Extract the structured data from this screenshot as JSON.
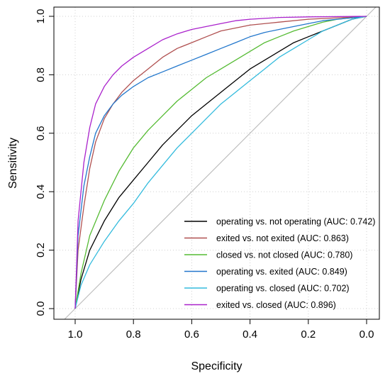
{
  "chart_data": {
    "type": "line",
    "title": "",
    "xlabel": "Specificity",
    "ylabel": "Sensitivity",
    "xlim": [
      1.0,
      0.0
    ],
    "ylim": [
      0.0,
      1.0
    ],
    "x_reversed": true,
    "x_ticks": [
      "1.0",
      "0.8",
      "0.6",
      "0.4",
      "0.2",
      "0.0"
    ],
    "y_ticks": [
      "0.0",
      "0.2",
      "0.4",
      "0.6",
      "0.8",
      "1.0"
    ],
    "grid": true,
    "legend_position": "bottom-right",
    "reference_line": {
      "from": [
        1.0,
        0.0
      ],
      "to": [
        0.0,
        1.0
      ],
      "color": "#bebebe"
    },
    "series": [
      {
        "name": "operating vs. not operating (AUC: 0.742)",
        "color": "#000000",
        "x": [
          1.0,
          0.98,
          0.95,
          0.9,
          0.85,
          0.8,
          0.75,
          0.7,
          0.65,
          0.6,
          0.55,
          0.5,
          0.45,
          0.4,
          0.35,
          0.3,
          0.25,
          0.2,
          0.15,
          0.1,
          0.05,
          0.0
        ],
        "y": [
          0.0,
          0.1,
          0.2,
          0.3,
          0.38,
          0.44,
          0.5,
          0.56,
          0.61,
          0.66,
          0.7,
          0.74,
          0.78,
          0.82,
          0.85,
          0.88,
          0.91,
          0.93,
          0.95,
          0.97,
          0.99,
          1.0
        ]
      },
      {
        "name": "exited vs. not exited (AUC: 0.863)",
        "color": "#b05050",
        "x": [
          1.0,
          0.99,
          0.97,
          0.95,
          0.93,
          0.9,
          0.87,
          0.84,
          0.8,
          0.75,
          0.7,
          0.65,
          0.6,
          0.55,
          0.5,
          0.45,
          0.4,
          0.3,
          0.2,
          0.1,
          0.0
        ],
        "y": [
          0.0,
          0.2,
          0.35,
          0.48,
          0.57,
          0.65,
          0.7,
          0.74,
          0.78,
          0.82,
          0.86,
          0.89,
          0.91,
          0.93,
          0.95,
          0.96,
          0.97,
          0.98,
          0.99,
          0.995,
          1.0
        ]
      },
      {
        "name": "closed vs. not closed (AUC: 0.780)",
        "color": "#55bb33",
        "x": [
          1.0,
          0.98,
          0.95,
          0.9,
          0.85,
          0.8,
          0.75,
          0.7,
          0.65,
          0.6,
          0.55,
          0.5,
          0.45,
          0.4,
          0.35,
          0.3,
          0.25,
          0.2,
          0.15,
          0.1,
          0.05,
          0.0
        ],
        "y": [
          0.0,
          0.12,
          0.25,
          0.37,
          0.47,
          0.55,
          0.61,
          0.66,
          0.71,
          0.75,
          0.79,
          0.82,
          0.85,
          0.88,
          0.91,
          0.93,
          0.95,
          0.965,
          0.98,
          0.99,
          0.995,
          1.0
        ]
      },
      {
        "name": "operating vs. exited (AUC: 0.849)",
        "color": "#2277cc",
        "x": [
          1.0,
          0.99,
          0.97,
          0.95,
          0.93,
          0.9,
          0.87,
          0.84,
          0.8,
          0.75,
          0.7,
          0.65,
          0.6,
          0.55,
          0.5,
          0.45,
          0.4,
          0.35,
          0.3,
          0.25,
          0.2,
          0.15,
          0.1,
          0.05,
          0.0
        ],
        "y": [
          0.0,
          0.25,
          0.42,
          0.52,
          0.6,
          0.66,
          0.7,
          0.73,
          0.76,
          0.79,
          0.81,
          0.83,
          0.85,
          0.87,
          0.89,
          0.91,
          0.93,
          0.945,
          0.955,
          0.965,
          0.975,
          0.985,
          0.99,
          0.995,
          1.0
        ]
      },
      {
        "name": "operating vs. closed (AUC: 0.702)",
        "color": "#33bbdd",
        "x": [
          1.0,
          0.98,
          0.95,
          0.9,
          0.85,
          0.8,
          0.75,
          0.7,
          0.65,
          0.6,
          0.55,
          0.5,
          0.45,
          0.4,
          0.35,
          0.3,
          0.25,
          0.2,
          0.15,
          0.1,
          0.05,
          0.0
        ],
        "y": [
          0.0,
          0.08,
          0.15,
          0.23,
          0.3,
          0.36,
          0.43,
          0.49,
          0.55,
          0.6,
          0.65,
          0.7,
          0.74,
          0.78,
          0.82,
          0.86,
          0.89,
          0.92,
          0.95,
          0.97,
          0.99,
          1.0
        ]
      },
      {
        "name": "exited vs. closed (AUC: 0.896)",
        "color": "#aa22cc",
        "x": [
          1.0,
          0.99,
          0.97,
          0.95,
          0.93,
          0.9,
          0.87,
          0.84,
          0.8,
          0.75,
          0.7,
          0.65,
          0.6,
          0.55,
          0.5,
          0.45,
          0.4,
          0.35,
          0.3,
          0.2,
          0.1,
          0.0
        ],
        "y": [
          0.0,
          0.3,
          0.5,
          0.62,
          0.7,
          0.76,
          0.8,
          0.83,
          0.86,
          0.89,
          0.92,
          0.94,
          0.955,
          0.965,
          0.975,
          0.985,
          0.99,
          0.993,
          0.996,
          0.998,
          0.999,
          1.0
        ]
      }
    ]
  }
}
